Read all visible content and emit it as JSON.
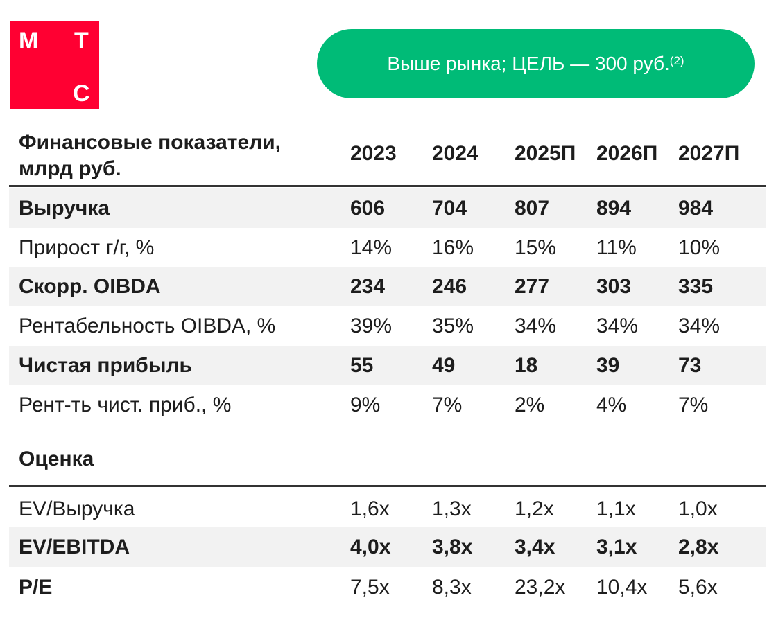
{
  "logo": {
    "letters": [
      "М",
      "Т",
      "С"
    ],
    "color": "#ff0032"
  },
  "banner": {
    "text": "Выше рынка; ЦЕЛЬ — 300 руб.",
    "footnote": "(2)",
    "color": "#00bb77"
  },
  "table": {
    "header": {
      "label_line1": "Финансовые показатели,",
      "label_line2": "млрд руб.",
      "years": [
        "2023",
        "2024",
        "2025П",
        "2026П",
        "2027П"
      ]
    },
    "rows": [
      {
        "label": "Выручка",
        "values": [
          "606",
          "704",
          "807",
          "894",
          "984"
        ]
      },
      {
        "label": "Прирост г/г, %",
        "values": [
          "14%",
          "16%",
          "15%",
          "11%",
          "10%"
        ]
      },
      {
        "label": "Скорр. OIBDA",
        "values": [
          "234",
          "246",
          "277",
          "303",
          "335"
        ]
      },
      {
        "label": "Рентабельность OIBDA, %",
        "values": [
          "39%",
          "35%",
          "34%",
          "34%",
          "34%"
        ]
      },
      {
        "label": "Чистая прибыль",
        "values": [
          "55",
          "49",
          "18",
          "39",
          "73"
        ]
      },
      {
        "label": "Рент-ть чист. приб., %",
        "values": [
          "9%",
          "7%",
          "2%",
          "4%",
          "7%"
        ]
      }
    ],
    "valuation_title": "Оценка",
    "valuation_rows": [
      {
        "label": "EV/Выручка",
        "values": [
          "1,6x",
          "1,3x",
          "1,2x",
          "1,1x",
          "1,0x"
        ]
      },
      {
        "label": "EV/EBITDA",
        "values": [
          "4,0x",
          "3,8x",
          "3,4x",
          "3,1x",
          "2,8x"
        ]
      },
      {
        "label": "P/E",
        "values": [
          "7,5x",
          "8,3x",
          "23,2x",
          "10,4x",
          "5,6x"
        ]
      }
    ]
  }
}
